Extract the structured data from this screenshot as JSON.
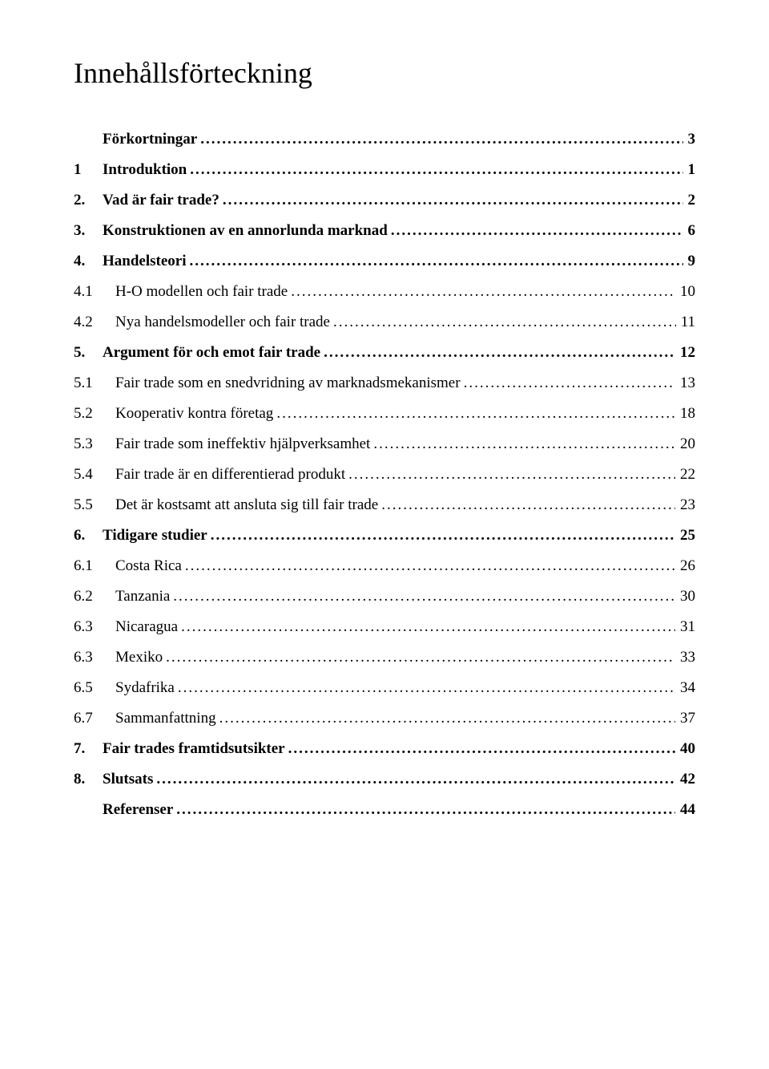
{
  "title": "Innehållsförteckning",
  "entries": [
    {
      "num": "",
      "label": "Förkortningar",
      "page": "3",
      "bold": true,
      "indent": 0,
      "numClass": "num-col-main"
    },
    {
      "num": "1",
      "label": "Introduktion",
      "page": "1",
      "bold": true,
      "indent": 0,
      "numClass": "num-col-main"
    },
    {
      "num": "2.",
      "label": "Vad är fair trade?",
      "page": "2",
      "bold": true,
      "indent": 0,
      "numClass": "num-col-main"
    },
    {
      "num": "3.",
      "label": "Konstruktionen av en annorlunda marknad",
      "page": "6",
      "bold": true,
      "indent": 0,
      "numClass": "num-col-main"
    },
    {
      "num": "4.",
      "label": "Handelsteori",
      "page": "9",
      "bold": true,
      "indent": 0,
      "numClass": "num-col-main"
    },
    {
      "num": "4.1",
      "label": "H-O modellen och fair trade",
      "page": "10",
      "bold": false,
      "indent": 1,
      "numClass": "num-col-sub"
    },
    {
      "num": "4.2",
      "label": "Nya handelsmodeller och fair trade",
      "page": "11",
      "bold": false,
      "indent": 1,
      "numClass": "num-col-sub"
    },
    {
      "num": "5.",
      "label": "Argument för och emot fair trade",
      "page": "12",
      "bold": true,
      "indent": 0,
      "numClass": "num-col-main"
    },
    {
      "num": "5.1",
      "label": "Fair trade som en snedvridning av marknadsmekanismer",
      "page": "13",
      "bold": false,
      "indent": 1,
      "numClass": "num-col-sub"
    },
    {
      "num": "5.2",
      "label": "Kooperativ kontra företag",
      "page": "18",
      "bold": false,
      "indent": 1,
      "numClass": "num-col-sub"
    },
    {
      "num": "5.3",
      "label": "Fair trade som ineffektiv hjälpverksamhet",
      "page": "20",
      "bold": false,
      "indent": 1,
      "numClass": "num-col-sub"
    },
    {
      "num": "5.4",
      "label": "Fair trade är en differentierad produkt",
      "page": "22",
      "bold": false,
      "indent": 1,
      "numClass": "num-col-sub"
    },
    {
      "num": "5.5",
      "label": "Det är kostsamt att ansluta sig till fair trade",
      "page": "23",
      "bold": false,
      "indent": 1,
      "numClass": "num-col-sub"
    },
    {
      "num": "6.",
      "label": "Tidigare studier",
      "page": "25",
      "bold": true,
      "indent": 0,
      "numClass": "num-col-main"
    },
    {
      "num": "6.1",
      "label": "Costa Rica",
      "page": "26",
      "bold": false,
      "indent": 1,
      "numClass": "num-col-sub"
    },
    {
      "num": "6.2",
      "label": "Tanzania",
      "page": "30",
      "bold": false,
      "indent": 1,
      "numClass": "num-col-sub"
    },
    {
      "num": "6.3",
      "label": "Nicaragua",
      "page": "31",
      "bold": false,
      "indent": 1,
      "numClass": "num-col-sub"
    },
    {
      "num": "6.3",
      "label": "Mexiko",
      "page": "33",
      "bold": false,
      "indent": 1,
      "numClass": "num-col-sub"
    },
    {
      "num": "6.5",
      "label": "Sydafrika",
      "page": "34",
      "bold": false,
      "indent": 1,
      "numClass": "num-col-sub"
    },
    {
      "num": "6.7",
      "label": "Sammanfattning",
      "page": "37",
      "bold": false,
      "indent": 1,
      "numClass": "num-col-sub"
    },
    {
      "num": "7.",
      "label": "Fair trades framtidsutsikter",
      "page": "40",
      "bold": true,
      "indent": 0,
      "numClass": "num-col-main"
    },
    {
      "num": "8.",
      "label": "Slutsats",
      "page": "42",
      "bold": true,
      "indent": 0,
      "numClass": "num-col-main"
    },
    {
      "num": "",
      "label": "Referenser",
      "page": "44",
      "bold": true,
      "indent": 0,
      "numClass": "num-col-main"
    }
  ]
}
